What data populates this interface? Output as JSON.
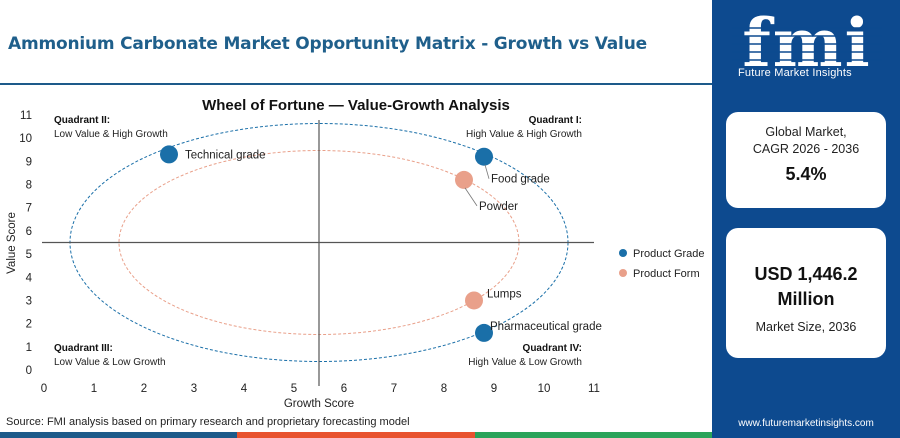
{
  "header": {
    "title": "Ammonium Carbonate Market Opportunity Matrix - Growth vs Value"
  },
  "chart_data": {
    "type": "scatter",
    "title": "Wheel of Fortune — Value-Growth Analysis",
    "xlabel": "Growth Score",
    "ylabel": "Value Score",
    "xlim": [
      0,
      11
    ],
    "ylim": [
      0,
      11
    ],
    "xticks": [
      0,
      1,
      2,
      3,
      4,
      5,
      6,
      7,
      8,
      9,
      10,
      11
    ],
    "yticks": [
      0,
      1,
      2,
      3,
      4,
      5,
      6,
      7,
      8,
      9,
      10,
      11
    ],
    "divider": {
      "x": 5.5,
      "y": 5.5
    },
    "grid": false,
    "legend_position": "right",
    "series": [
      {
        "name": "Product Grade",
        "color": "#1a6fa8",
        "points": [
          {
            "label": "Technical grade",
            "x": 2.5,
            "y": 9.3
          },
          {
            "label": "Food grade",
            "x": 8.8,
            "y": 9.2
          },
          {
            "label": "Pharmaceutical grade",
            "x": 8.8,
            "y": 1.6
          }
        ]
      },
      {
        "name": "Product Form",
        "color": "#e9a08a",
        "points": [
          {
            "label": "Powder",
            "x": 8.4,
            "y": 8.2
          },
          {
            "label": "Lumps",
            "x": 8.6,
            "y": 3.0
          }
        ]
      }
    ],
    "quadrants": [
      {
        "name": "Quadrant II:",
        "desc": "Low Value & High Growth"
      },
      {
        "name": "Quadrant I:",
        "desc": "High Value & High Growth"
      },
      {
        "name": "Quadrant III:",
        "desc": "Low Value & Low Growth"
      },
      {
        "name": "Quadrant IV:",
        "desc": "High Value & Low Growth"
      }
    ]
  },
  "footer": {
    "source": "Source: FMI analysis based on primary research and proprietary forecasting model",
    "bar_colors": [
      "#1d5a8a",
      "#e8532f",
      "#2aa35a"
    ]
  },
  "sidebar": {
    "logo_text": "fmi",
    "logo_sub": "Future Market Insights",
    "cagr_label": "Global Market,\nCAGR 2026 - 2036",
    "cagr_value": "5.4%",
    "size_value": "USD 1,446.2 Million",
    "size_label": "Market Size, 2036",
    "website": "www.futuremarketinsights.com"
  }
}
